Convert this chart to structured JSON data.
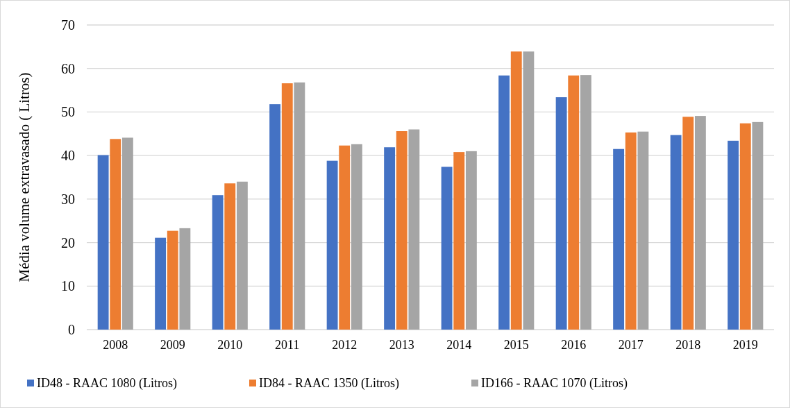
{
  "chart_data": {
    "type": "bar",
    "ylabel": "Média volume extravasado ( Litros)",
    "categories": [
      "2008",
      "2009",
      "2010",
      "2011",
      "2012",
      "2013",
      "2014",
      "2015",
      "2016",
      "2017",
      "2018",
      "2019"
    ],
    "series": [
      {
        "name": "ID48 - RAAC 1080 (Litros)",
        "color": "#4472c4",
        "values": [
          40.1,
          21.1,
          30.9,
          51.8,
          38.8,
          41.9,
          37.4,
          58.4,
          53.4,
          41.5,
          44.7,
          43.4
        ]
      },
      {
        "name": "ID84 - RAAC 1350 (Litros)",
        "color": "#ed7d31",
        "values": [
          43.8,
          22.7,
          33.6,
          56.6,
          42.3,
          45.6,
          40.8,
          63.9,
          58.4,
          45.3,
          48.9,
          47.4
        ]
      },
      {
        "name": "ID166 - RAAC 1070 (Litros)",
        "color": "#a5a5a5",
        "values": [
          44.1,
          23.3,
          34.0,
          56.8,
          42.6,
          46.0,
          41.0,
          63.9,
          58.5,
          45.5,
          49.1,
          47.7
        ]
      }
    ],
    "ylim": [
      0,
      70
    ],
    "yticks": [
      0,
      10,
      20,
      30,
      40,
      50,
      60,
      70
    ],
    "grid": "y",
    "legend": "bottom"
  }
}
